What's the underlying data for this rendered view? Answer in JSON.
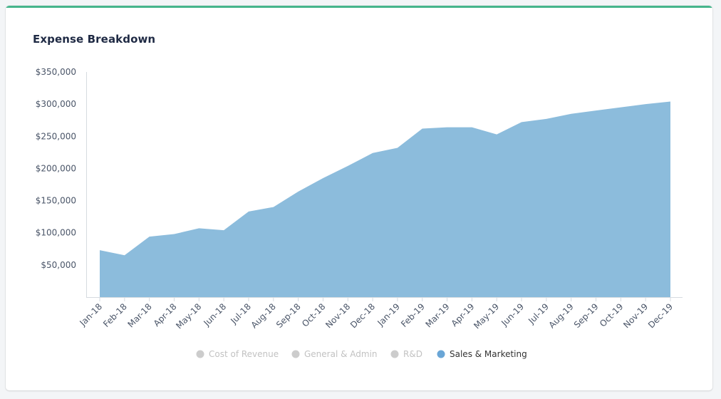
{
  "card": {
    "title": "Expense Breakdown",
    "accent_color": "#46b58c"
  },
  "chart_data": {
    "type": "area",
    "title": "Expense Breakdown",
    "xlabel": "",
    "ylabel": "",
    "ylim": [
      0,
      350000
    ],
    "yticks": [
      50000,
      100000,
      150000,
      200000,
      250000,
      300000,
      350000
    ],
    "ytick_labels": [
      "$50,000",
      "$100,000",
      "$150,000",
      "$200,000",
      "$250,000",
      "$300,000",
      "$350,000"
    ],
    "grid": false,
    "legend_position": "bottom-center",
    "categories": [
      "Jan-18",
      "Feb-18",
      "Mar-18",
      "Apr-18",
      "May-18",
      "Jun-18",
      "Jul-18",
      "Aug-18",
      "Sep-18",
      "Oct-18",
      "Nov-18",
      "Dec-18",
      "Jan-19",
      "Feb-19",
      "Mar-19",
      "Apr-19",
      "May-19",
      "Jun-19",
      "Jul-19",
      "Aug-19",
      "Sep-19",
      "Oct-19",
      "Nov-19",
      "Dec-19"
    ],
    "series": [
      {
        "name": "Sales & Marketing",
        "color": "#8cbcdc",
        "values": [
          73000,
          65000,
          94000,
          98000,
          107000,
          104000,
          133000,
          140000,
          164000,
          185000,
          204000,
          224000,
          232000,
          262000,
          264000,
          264000,
          253000,
          272000,
          277000,
          285000,
          290000,
          295000,
          300000,
          304000
        ]
      }
    ],
    "legend": [
      {
        "label": "Cost of Revenue",
        "active": false,
        "color": "#cccccc"
      },
      {
        "label": "General & Admin",
        "active": false,
        "color": "#cccccc"
      },
      {
        "label": "R&D",
        "active": false,
        "color": "#cccccc"
      },
      {
        "label": "Sales & Marketing",
        "active": true,
        "color": "#6aa6d6"
      }
    ],
    "legend_inactive_text_color": "#c2c2c2",
    "legend_active_text_color": "#333333"
  }
}
